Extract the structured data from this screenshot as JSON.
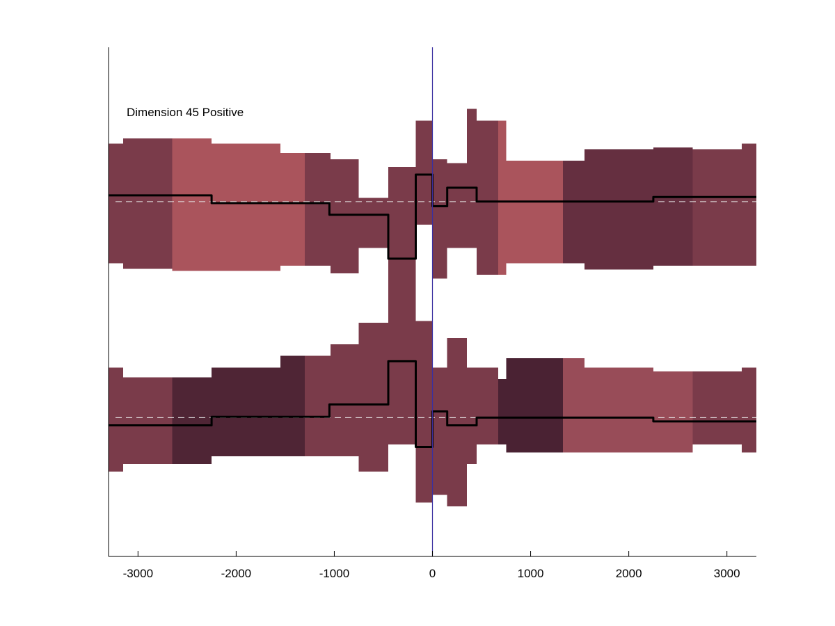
{
  "chart_data": {
    "type": "area",
    "title": "",
    "annotation": "Dimension 45 Positive",
    "xlabel": "",
    "ylabel": "",
    "xlim": [
      -3300,
      3300
    ],
    "ylim": [
      -3.3,
      3.3
    ],
    "xticks": [
      -3000,
      -2000,
      -1000,
      0,
      1000,
      2000,
      3000
    ],
    "xtick_labels": [
      "-3000",
      "-2000",
      "-1000",
      "0",
      "1000",
      "2000",
      "3000"
    ],
    "yticks_shown": false,
    "grid": false,
    "vertical_marker_x": 0,
    "vertical_marker_color": "#3a2fa0",
    "series": [
      {
        "baseline": 1.3,
        "blocks": [
          {
            "x0": -3300,
            "x1": -3150,
            "low": 0.5,
            "high": 2.05,
            "color": "#7a3b4a"
          },
          {
            "x0": -3150,
            "x1": -2650,
            "low": 0.43,
            "high": 2.12,
            "color": "#7a3b4a"
          },
          {
            "x0": -2650,
            "x1": -2250,
            "low": 0.4,
            "high": 2.12,
            "color": "#aa545c"
          },
          {
            "x0": -2250,
            "x1": -1550,
            "low": 0.4,
            "high": 2.05,
            "color": "#aa545c"
          },
          {
            "x0": -1550,
            "x1": -1300,
            "low": 0.47,
            "high": 1.93,
            "color": "#aa545c"
          },
          {
            "x0": -1300,
            "x1": -1040,
            "low": 0.47,
            "high": 1.93,
            "color": "#7a3b4a"
          },
          {
            "x0": -1040,
            "x1": -750,
            "low": 0.37,
            "high": 1.85,
            "color": "#7a3b4a"
          },
          {
            "x0": -750,
            "x1": -450,
            "low": 0.7,
            "high": 1.35,
            "color": "#7a3b4a"
          },
          {
            "x0": -450,
            "x1": -170,
            "low": -0.7,
            "high": 1.75,
            "color": "#7a3b4a"
          },
          {
            "x0": -170,
            "x1": 0,
            "low": 1.0,
            "high": 2.35,
            "color": "#7a3b4a"
          },
          {
            "x0": 0,
            "x1": 150,
            "low": 0.3,
            "high": 1.85,
            "color": "#7a3b4a"
          },
          {
            "x0": 150,
            "x1": 350,
            "low": 0.7,
            "high": 1.8,
            "color": "#7a3b4a"
          },
          {
            "x0": 350,
            "x1": 450,
            "low": 0.7,
            "high": 2.5,
            "color": "#7a3b4a"
          },
          {
            "x0": 450,
            "x1": 670,
            "low": 0.35,
            "high": 2.35,
            "color": "#7a3b4a"
          },
          {
            "x0": 670,
            "x1": 750,
            "low": 0.35,
            "high": 2.35,
            "color": "#aa545c"
          },
          {
            "x0": 750,
            "x1": 1330,
            "low": 0.5,
            "high": 1.83,
            "color": "#aa545c"
          },
          {
            "x0": 1330,
            "x1": 1550,
            "low": 0.5,
            "high": 1.83,
            "color": "#652f40"
          },
          {
            "x0": 1550,
            "x1": 2250,
            "low": 0.42,
            "high": 1.98,
            "color": "#652f40"
          },
          {
            "x0": 2250,
            "x1": 2650,
            "low": 0.47,
            "high": 2.0,
            "color": "#652f40"
          },
          {
            "x0": 2650,
            "x1": 3150,
            "low": 0.47,
            "high": 1.98,
            "color": "#7a3b4a"
          },
          {
            "x0": 3150,
            "x1": 3300,
            "low": 0.47,
            "high": 2.05,
            "color": "#7a3b4a"
          }
        ],
        "line_x": [
          -3300,
          -2250,
          -2250,
          -1050,
          -1050,
          -450,
          -450,
          -170,
          -170,
          0,
          0,
          150,
          150,
          450,
          450,
          2250,
          2250,
          3300
        ],
        "line_y": [
          1.38,
          1.38,
          1.28,
          1.28,
          1.13,
          1.13,
          0.56,
          0.56,
          1.65,
          1.65,
          1.24,
          1.24,
          1.48,
          1.48,
          1.3,
          1.3,
          1.36,
          1.36
        ]
      },
      {
        "baseline": -1.5,
        "blocks": [
          {
            "x0": -3300,
            "x1": -3150,
            "low": -2.2,
            "high": -0.85,
            "color": "#7a3b4a"
          },
          {
            "x0": -3150,
            "x1": -2650,
            "low": -2.1,
            "high": -0.98,
            "color": "#7a3b4a"
          },
          {
            "x0": -2650,
            "x1": -2250,
            "low": -2.1,
            "high": -0.98,
            "color": "#4f2535"
          },
          {
            "x0": -2250,
            "x1": -1550,
            "low": -2.0,
            "high": -0.85,
            "color": "#4f2535"
          },
          {
            "x0": -1550,
            "x1": -1300,
            "low": -2.0,
            "high": -0.7,
            "color": "#4f2535"
          },
          {
            "x0": -1300,
            "x1": -1040,
            "low": -2.0,
            "high": -0.7,
            "color": "#7a3b4a"
          },
          {
            "x0": -1040,
            "x1": -750,
            "low": -2.0,
            "high": -0.55,
            "color": "#7a3b4a"
          },
          {
            "x0": -750,
            "x1": -450,
            "low": -2.2,
            "high": -0.27,
            "color": "#7a3b4a"
          },
          {
            "x0": -450,
            "x1": -170,
            "low": -1.85,
            "high": 0.2,
            "color": "#7a3b4a"
          },
          {
            "x0": -170,
            "x1": 0,
            "low": -2.6,
            "high": -0.25,
            "color": "#7a3b4a"
          },
          {
            "x0": 0,
            "x1": 150,
            "low": -2.5,
            "high": -0.85,
            "color": "#7a3b4a"
          },
          {
            "x0": 150,
            "x1": 350,
            "low": -2.65,
            "high": -0.47,
            "color": "#7a3b4a"
          },
          {
            "x0": 350,
            "x1": 450,
            "low": -2.1,
            "high": -0.85,
            "color": "#7a3b4a"
          },
          {
            "x0": 450,
            "x1": 670,
            "low": -1.85,
            "high": -0.85,
            "color": "#7a3b4a"
          },
          {
            "x0": 670,
            "x1": 750,
            "low": -1.85,
            "high": -1.0,
            "color": "#4a2233"
          },
          {
            "x0": 750,
            "x1": 1330,
            "low": -1.95,
            "high": -0.73,
            "color": "#4a2233"
          },
          {
            "x0": 1330,
            "x1": 1550,
            "low": -1.95,
            "high": -0.73,
            "color": "#984c58"
          },
          {
            "x0": 1550,
            "x1": 2250,
            "low": -1.95,
            "high": -0.85,
            "color": "#984c58"
          },
          {
            "x0": 2250,
            "x1": 2650,
            "low": -1.95,
            "high": -0.9,
            "color": "#984c58"
          },
          {
            "x0": 2650,
            "x1": 3150,
            "low": -1.85,
            "high": -0.9,
            "color": "#7a3b4a"
          },
          {
            "x0": 3150,
            "x1": 3300,
            "low": -1.95,
            "high": -0.85,
            "color": "#7a3b4a"
          }
        ],
        "line_x": [
          -3300,
          -2250,
          -2250,
          -1050,
          -1050,
          -450,
          -450,
          -170,
          -170,
          0,
          0,
          150,
          150,
          450,
          450,
          2250,
          2250,
          3300
        ],
        "line_y": [
          -1.6,
          -1.6,
          -1.49,
          -1.49,
          -1.33,
          -1.33,
          -0.77,
          -0.77,
          -1.88,
          -1.88,
          -1.42,
          -1.42,
          -1.6,
          -1.6,
          -1.5,
          -1.5,
          -1.55,
          -1.55
        ]
      }
    ]
  }
}
